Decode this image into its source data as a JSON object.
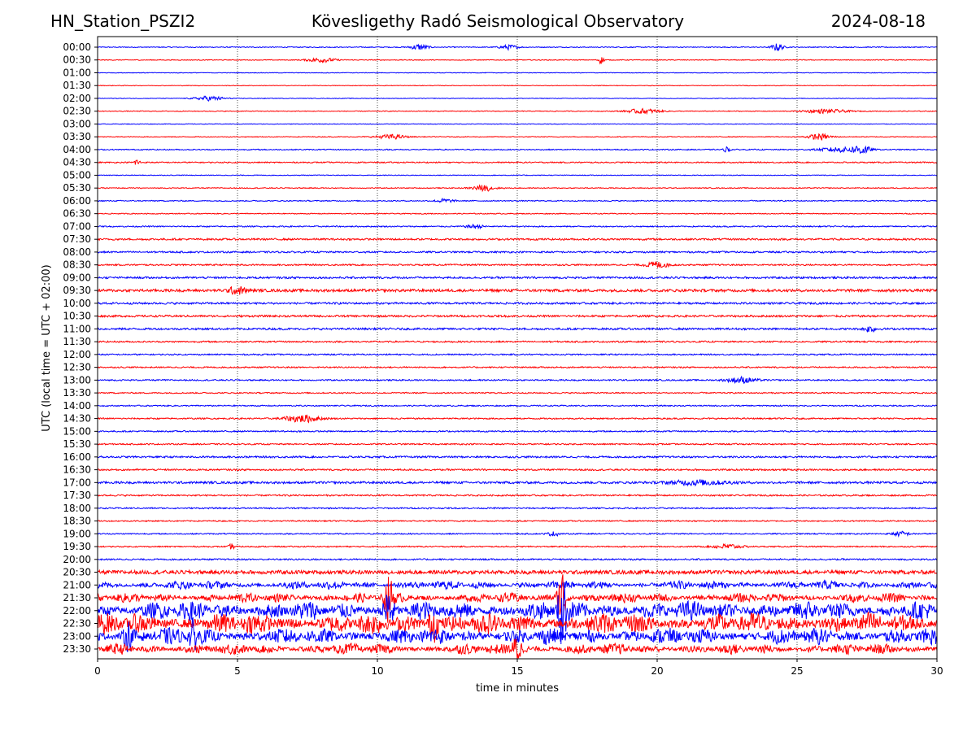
{
  "header": {
    "station": "HN_Station_PSZI2",
    "title": "Kövesligethy Radó Seismological Observatory",
    "date": "2024-08-18"
  },
  "chart_data": {
    "type": "line",
    "title": "Kövesligethy Radó Seismological Observatory",
    "xlabel": "time in minutes",
    "ylabel": "UTC (local time = UTC + 02:00)",
    "xlim": [
      0,
      30
    ],
    "x_ticks": [
      "0",
      "5",
      "10",
      "15",
      "20",
      "25",
      "30"
    ],
    "grid": "vertical dotted at 5, 10, 15, 20, 25",
    "series_colors": [
      "#0000ff",
      "#ff0000"
    ],
    "row_labels": [
      "00:00",
      "00:30",
      "01:00",
      "01:30",
      "02:00",
      "02:30",
      "03:00",
      "03:30",
      "04:00",
      "04:30",
      "05:00",
      "05:30",
      "06:00",
      "06:30",
      "07:00",
      "07:30",
      "08:00",
      "08:30",
      "09:00",
      "09:30",
      "10:00",
      "10:30",
      "11:00",
      "11:30",
      "12:00",
      "12:30",
      "13:00",
      "13:30",
      "14:00",
      "14:30",
      "15:00",
      "15:30",
      "16:00",
      "16:30",
      "17:00",
      "17:30",
      "18:00",
      "18:30",
      "19:00",
      "19:30",
      "20:00",
      "20:30",
      "21:00",
      "21:30",
      "22:00",
      "22:30",
      "23:00",
      "23:30"
    ],
    "noise_levels": [
      0.6,
      0.5,
      0.4,
      0.4,
      0.4,
      0.5,
      0.4,
      0.5,
      0.7,
      0.8,
      0.5,
      0.6,
      0.7,
      0.6,
      0.8,
      1.2,
      1.1,
      1.0,
      1.3,
      1.8,
      1.3,
      1.3,
      1.3,
      1.0,
      0.9,
      0.9,
      0.9,
      0.8,
      0.8,
      0.9,
      0.9,
      0.9,
      1.2,
      1.1,
      1.5,
      1.0,
      0.9,
      0.8,
      0.8,
      0.8,
      1.0,
      2.5,
      3.5,
      4.0,
      8.0,
      9.0,
      7.0,
      4.5
    ],
    "events": [
      {
        "row": 0,
        "minute": 11.5,
        "amp": 4,
        "width": 0.3
      },
      {
        "row": 0,
        "minute": 14.7,
        "amp": 3,
        "width": 0.3
      },
      {
        "row": 0,
        "minute": 24.3,
        "amp": 5,
        "width": 0.2
      },
      {
        "row": 1,
        "minute": 8.0,
        "amp": 3,
        "width": 0.5
      },
      {
        "row": 1,
        "minute": 18.0,
        "amp": 5,
        "width": 0.1
      },
      {
        "row": 4,
        "minute": 4.0,
        "amp": 3,
        "width": 0.5
      },
      {
        "row": 5,
        "minute": 19.5,
        "amp": 3,
        "width": 0.6
      },
      {
        "row": 5,
        "minute": 26.0,
        "amp": 2.5,
        "width": 0.8
      },
      {
        "row": 7,
        "minute": 10.5,
        "amp": 3,
        "width": 0.5
      },
      {
        "row": 7,
        "minute": 25.8,
        "amp": 4,
        "width": 0.4
      },
      {
        "row": 8,
        "minute": 22.5,
        "amp": 4,
        "width": 0.1
      },
      {
        "row": 8,
        "minute": 26.5,
        "amp": 3,
        "width": 0.7
      },
      {
        "row": 8,
        "minute": 27.3,
        "amp": 6,
        "width": 0.3
      },
      {
        "row": 9,
        "minute": 1.4,
        "amp": 5,
        "width": 0.1
      },
      {
        "row": 11,
        "minute": 13.8,
        "amp": 4,
        "width": 0.4
      },
      {
        "row": 12,
        "minute": 12.4,
        "amp": 2.5,
        "width": 0.3
      },
      {
        "row": 14,
        "minute": 13.5,
        "amp": 2.5,
        "width": 0.3
      },
      {
        "row": 17,
        "minute": 20.0,
        "amp": 4,
        "width": 0.4
      },
      {
        "row": 19,
        "minute": 5.0,
        "amp": 5,
        "width": 0.3
      },
      {
        "row": 22,
        "minute": 27.6,
        "amp": 4,
        "width": 0.2
      },
      {
        "row": 26,
        "minute": 23.0,
        "amp": 4,
        "width": 0.5
      },
      {
        "row": 29,
        "minute": 7.3,
        "amp": 5,
        "width": 0.6
      },
      {
        "row": 34,
        "minute": 21.5,
        "amp": 3,
        "width": 1.0
      },
      {
        "row": 38,
        "minute": 16.3,
        "amp": 3,
        "width": 0.2
      },
      {
        "row": 38,
        "minute": 28.7,
        "amp": 3,
        "width": 0.3
      },
      {
        "row": 39,
        "minute": 22.5,
        "amp": 3,
        "width": 0.5
      },
      {
        "row": 39,
        "minute": 4.8,
        "amp": 4,
        "width": 0.1
      },
      {
        "row": 43,
        "minute": 10.4,
        "amp": 28,
        "width": 0.15
      },
      {
        "row": 43,
        "minute": 16.6,
        "amp": 40,
        "width": 0.15
      },
      {
        "row": 44,
        "minute": 10.4,
        "amp": 30,
        "width": 0.15
      },
      {
        "row": 44,
        "minute": 16.6,
        "amp": 45,
        "width": 0.15
      },
      {
        "row": 45,
        "minute": 12.0,
        "amp": 25,
        "width": 0.15
      },
      {
        "row": 46,
        "minute": 3.4,
        "amp": 18,
        "width": 0.15
      },
      {
        "row": 46,
        "minute": 1.1,
        "amp": 15,
        "width": 0.15
      },
      {
        "row": 47,
        "minute": 15.0,
        "amp": 20,
        "width": 0.15
      }
    ]
  }
}
